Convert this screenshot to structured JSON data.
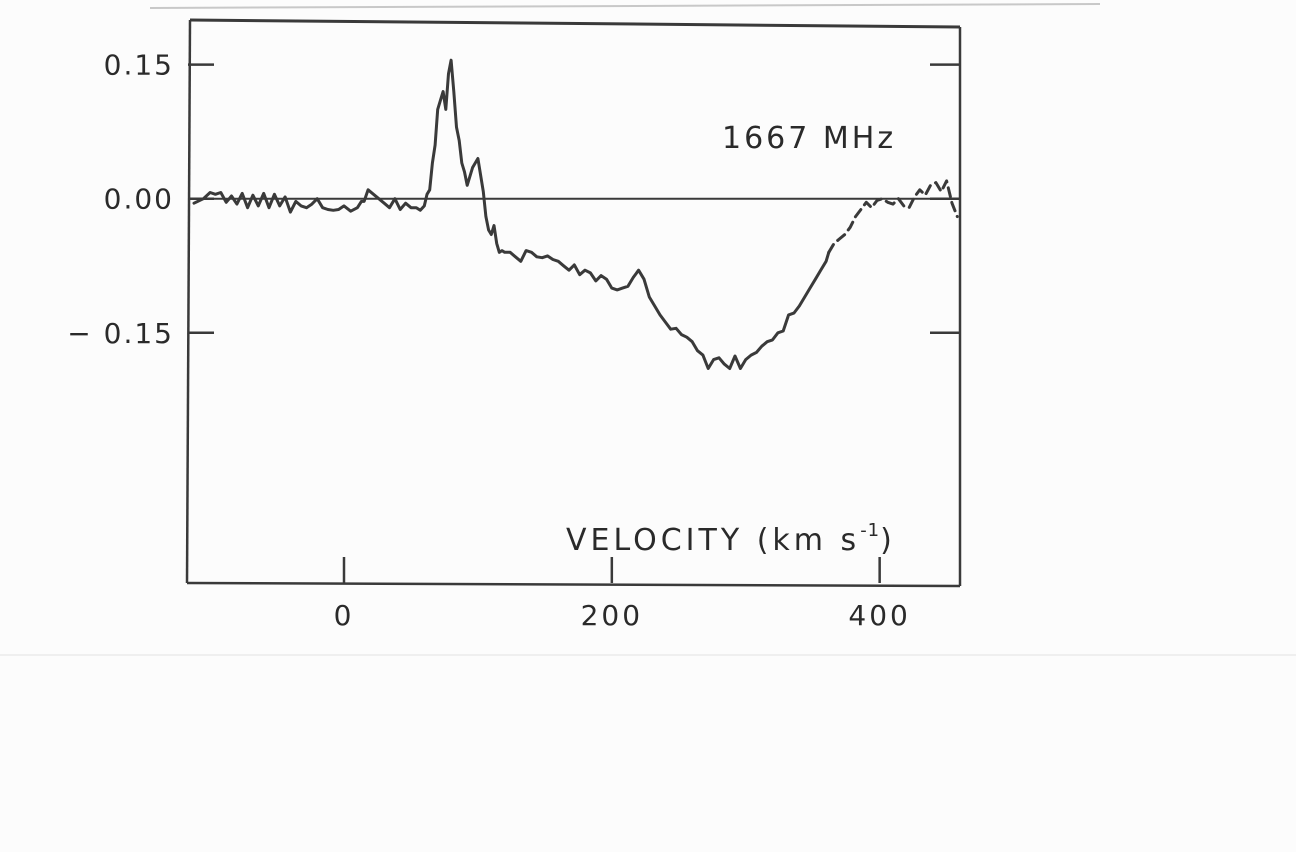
{
  "chart_data": {
    "type": "line",
    "annotation": "1667 MHz",
    "xlabel": {
      "main": "VELOCITY (km s",
      "sup": "-1",
      "close": ")"
    },
    "ylabel": "",
    "xlim": [
      -115,
      460
    ],
    "ylim": [
      -0.43,
      0.2
    ],
    "xticks": [
      0,
      200,
      400
    ],
    "xtick_labels": [
      "0",
      "200",
      "400"
    ],
    "yticks": [
      0.15,
      0.0,
      -0.15
    ],
    "ytick_labels": [
      "0.15",
      "0.00",
      "− 0.15"
    ],
    "zero_line": true,
    "grid": false,
    "legend": "none",
    "line_color": "#3a3a3a",
    "series": [
      {
        "style": "solid",
        "x": [
          -112,
          -105,
          -100,
          -96,
          -92,
          -88,
          -84,
          -80,
          -76,
          -72,
          -68,
          -64,
          -60,
          -56,
          -52,
          -48,
          -44,
          -40,
          -36,
          -32,
          -28,
          -24,
          -20,
          -16,
          -12,
          -8,
          -4,
          0,
          5,
          10,
          13,
          15,
          18,
          22,
          26,
          30,
          34,
          38,
          42,
          46,
          50,
          54,
          57,
          60,
          62,
          64,
          66,
          68,
          70,
          72,
          74,
          76,
          78,
          80,
          82,
          84,
          86,
          88,
          90,
          92,
          96,
          100,
          104,
          106,
          108,
          110,
          112,
          114,
          116,
          118,
          120,
          124,
          128,
          132,
          136,
          140,
          144,
          148,
          152,
          156,
          160,
          164,
          168,
          172,
          176,
          180,
          184,
          188,
          192,
          196,
          200,
          204,
          208,
          212,
          216,
          220,
          224,
          228,
          232,
          236,
          240,
          244,
          248,
          252,
          256,
          260,
          264,
          268,
          272,
          276,
          280,
          284,
          288,
          292,
          296,
          300,
          304,
          308,
          312,
          316,
          320,
          324,
          328,
          332,
          336,
          340,
          344,
          348,
          352,
          356,
          360,
          362
        ],
        "y": [
          -0.005,
          0.0,
          0.007,
          0.005,
          0.007,
          -0.004,
          0.003,
          -0.006,
          0.006,
          -0.01,
          0.004,
          -0.008,
          0.006,
          -0.01,
          0.005,
          -0.008,
          0.002,
          -0.015,
          -0.003,
          -0.008,
          -0.01,
          -0.006,
          0.0,
          -0.01,
          -0.012,
          -0.013,
          -0.012,
          -0.008,
          -0.014,
          -0.01,
          -0.003,
          -0.003,
          0.01,
          0.005,
          0.0,
          -0.005,
          -0.01,
          0.0,
          -0.012,
          -0.005,
          -0.01,
          -0.01,
          -0.013,
          -0.008,
          0.005,
          0.01,
          0.04,
          0.06,
          0.1,
          0.11,
          0.12,
          0.1,
          0.14,
          0.155,
          0.12,
          0.08,
          0.065,
          0.04,
          0.03,
          0.015,
          0.035,
          0.045,
          0.008,
          -0.02,
          -0.035,
          -0.04,
          -0.03,
          -0.05,
          -0.06,
          -0.058,
          -0.06,
          -0.06,
          -0.065,
          -0.07,
          -0.058,
          -0.06,
          -0.065,
          -0.066,
          -0.064,
          -0.068,
          -0.07,
          -0.075,
          -0.08,
          -0.074,
          -0.085,
          -0.08,
          -0.083,
          -0.092,
          -0.086,
          -0.09,
          -0.1,
          -0.102,
          -0.1,
          -0.098,
          -0.088,
          -0.08,
          -0.09,
          -0.11,
          -0.12,
          -0.13,
          -0.138,
          -0.146,
          -0.145,
          -0.152,
          -0.155,
          -0.16,
          -0.17,
          -0.175,
          -0.19,
          -0.18,
          -0.178,
          -0.185,
          -0.19,
          -0.176,
          -0.19,
          -0.18,
          -0.175,
          -0.172,
          -0.165,
          -0.16,
          -0.158,
          -0.15,
          -0.148,
          -0.13,
          -0.128,
          -0.12,
          -0.11,
          -0.1,
          -0.09,
          -0.08,
          -0.07,
          -0.06
        ]
      },
      {
        "style": "dashed",
        "x": [
          362,
          366,
          370,
          374,
          378,
          382,
          386,
          390,
          394,
          398,
          402,
          406,
          410,
          414,
          418,
          422,
          426,
          430,
          434,
          438,
          442,
          446,
          450,
          454,
          458
        ],
        "y": [
          -0.06,
          -0.05,
          -0.045,
          -0.04,
          -0.032,
          -0.02,
          -0.012,
          -0.004,
          -0.01,
          -0.002,
          0.0,
          -0.004,
          -0.006,
          0.0,
          -0.008,
          -0.01,
          0.002,
          0.01,
          0.004,
          0.015,
          0.018,
          0.008,
          0.02,
          -0.005,
          -0.02
        ]
      }
    ]
  }
}
